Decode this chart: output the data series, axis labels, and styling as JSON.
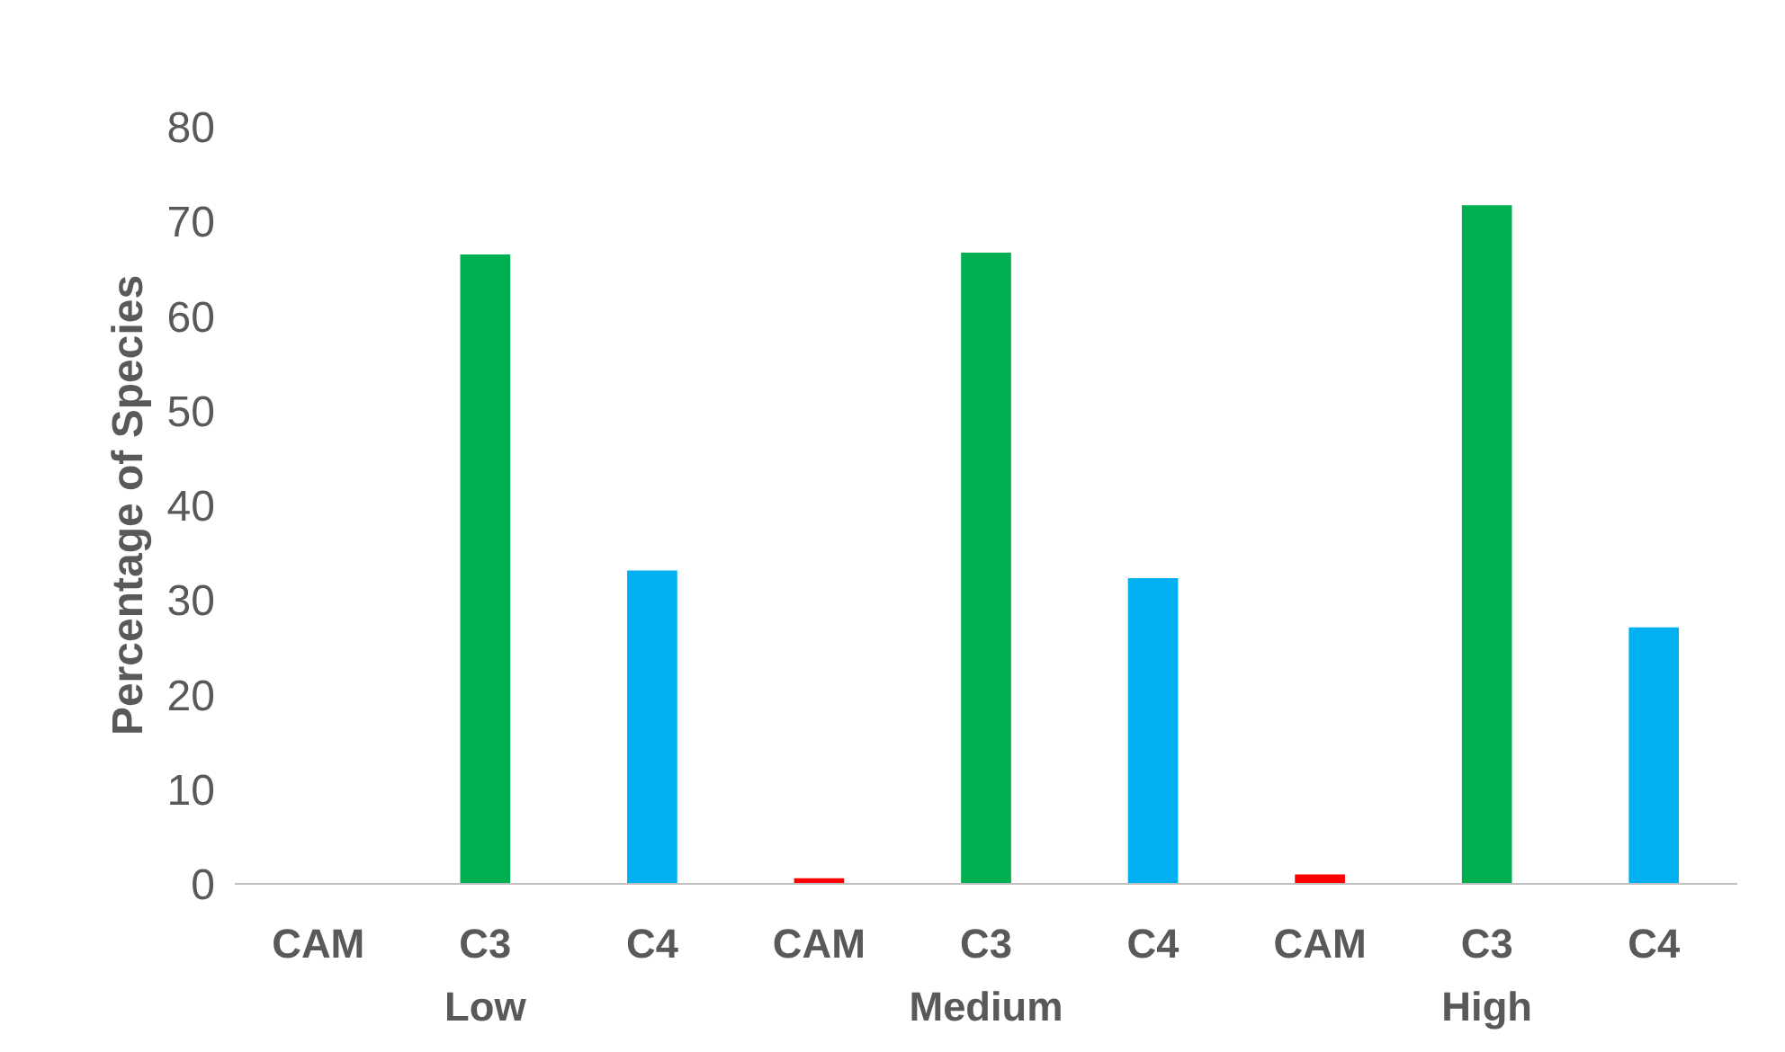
{
  "chart_data": {
    "type": "bar",
    "ylabel": "Percentage of Species",
    "categories": [
      "CAM",
      "C3",
      "C4",
      "CAM",
      "C3",
      "C4",
      "CAM",
      "C3",
      "C4"
    ],
    "values": [
      0,
      66.5,
      33.1,
      0.6,
      66.7,
      32.3,
      1.0,
      71.7,
      27.1
    ],
    "colors": [
      "#ff0000",
      "#00b050",
      "#00b0f0",
      "#ff0000",
      "#00b050",
      "#00b0f0",
      "#ff0000",
      "#00b050",
      "#00b0f0"
    ],
    "annotations": [
      "Low",
      "Medium",
      "High"
    ],
    "ylim": [
      0,
      80
    ],
    "yticks": [
      0,
      10,
      20,
      30,
      40,
      50,
      60,
      70,
      80
    ],
    "grid": false
  }
}
